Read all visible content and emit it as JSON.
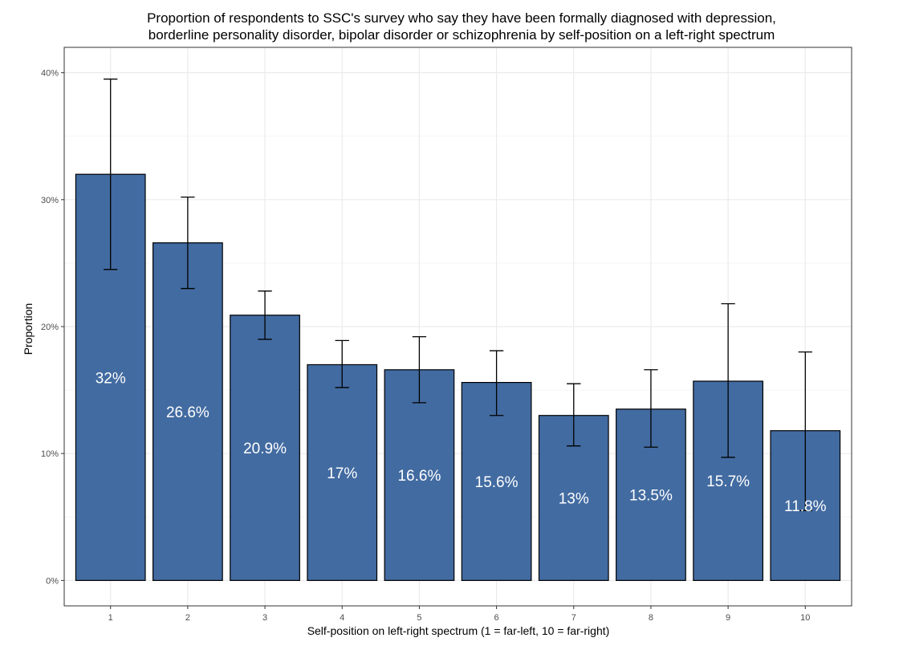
{
  "chart_data": {
    "type": "bar",
    "title_lines": [
      "Proportion of respondents to SSC's survey who say they have been formally diagnosed with depression,",
      "borderline personality disorder, bipolar disorder or schizophrenia by self-position on a left-right spectrum"
    ],
    "xlabel": "Self-position on left-right spectrum (1 = far-left, 10 = far-right)",
    "ylabel": "Proportion",
    "categories": [
      "1",
      "2",
      "3",
      "4",
      "5",
      "6",
      "7",
      "8",
      "9",
      "10"
    ],
    "values": [
      0.32,
      0.266,
      0.209,
      0.17,
      0.166,
      0.156,
      0.13,
      0.135,
      0.157,
      0.118
    ],
    "value_labels": [
      "32%",
      "26.6%",
      "20.9%",
      "17%",
      "16.6%",
      "15.6%",
      "13%",
      "13.5%",
      "15.7%",
      "11.8%"
    ],
    "error_low": [
      0.245,
      0.23,
      0.19,
      0.152,
      0.14,
      0.13,
      0.106,
      0.105,
      0.097,
      0.055
    ],
    "error_high": [
      0.395,
      0.302,
      0.228,
      0.189,
      0.192,
      0.181,
      0.155,
      0.166,
      0.218,
      0.18
    ],
    "ylim": [
      -0.02,
      0.42
    ],
    "y_ticks": [
      0,
      0.1,
      0.2,
      0.3,
      0.4
    ],
    "y_tick_labels": [
      "0%",
      "10%",
      "20%",
      "30%",
      "40%"
    ],
    "grid": true,
    "colors": {
      "bar_fill": "#426BA1",
      "bar_stroke": "#000000",
      "grid_major": "#ebebeb",
      "grid_minor": "#f5f5f5",
      "panel_border": "#333333",
      "label_text": "#ffffff"
    }
  }
}
